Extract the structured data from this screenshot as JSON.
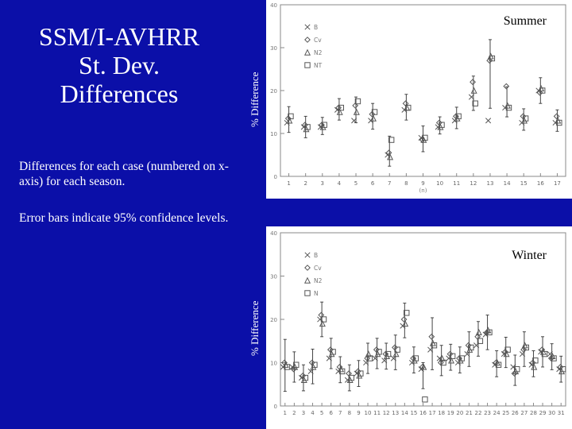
{
  "slide": {
    "title_lines": [
      "SSM/I-AVHRR",
      "St. Dev.",
      "Differences"
    ],
    "description": "Differences for each case (numbered on x-axis) for each season.",
    "error_note": "Error bars indicate 95% confidence levels."
  },
  "chart_data": [
    {
      "type": "scatter",
      "title": "Summer",
      "xlabel": "(n)",
      "ylabel": "% Difference",
      "ylim": [
        0,
        40
      ],
      "yticks": [
        0,
        10,
        20,
        30,
        40
      ],
      "x": [
        1,
        2,
        3,
        4,
        5,
        6,
        7,
        8,
        9,
        10,
        11,
        12,
        13,
        14,
        15,
        16,
        17
      ],
      "legend_placement": "top-left",
      "series": [
        {
          "name": "B",
          "marker": "x",
          "values": [
            12.5,
            11.5,
            11.5,
            15.5,
            13,
            13,
            5,
            15.5,
            9,
            11.5,
            13,
            18.5,
            13,
            16,
            12.5,
            20,
            12.5
          ]
        },
        {
          "name": "Cv",
          "marker": "diamond",
          "values": [
            13.5,
            12,
            12,
            16,
            16.5,
            14.5,
            5.5,
            17,
            8.5,
            12.5,
            14,
            22,
            27,
            21,
            14,
            19.5,
            14
          ]
        },
        {
          "name": "N2",
          "marker": "triangle",
          "values": [
            13,
            11,
            11.5,
            15,
            15,
            13.5,
            4.5,
            16,
            8.5,
            11.5,
            13.5,
            20,
            28,
            16.5,
            13,
            20.5,
            13
          ]
        },
        {
          "name": "NT",
          "marker": "square",
          "values": [
            14,
            11.5,
            12,
            16,
            17.5,
            15,
            8.5,
            16,
            9,
            12,
            14,
            17,
            27.5,
            16,
            13.5,
            20,
            12.5
          ]
        }
      ],
      "err": [
        3,
        2.5,
        2,
        2.5,
        3,
        3,
        3.5,
        3,
        3,
        2,
        2.5,
        4,
        8,
        3.5,
        2.5,
        3,
        2.5
      ]
    },
    {
      "type": "scatter",
      "title": "Winter",
      "xlabel": "",
      "ylabel": "% Difference",
      "ylim": [
        0,
        40
      ],
      "yticks": [
        0,
        10,
        20,
        30,
        40
      ],
      "x": [
        1,
        2,
        3,
        4,
        5,
        6,
        7,
        8,
        9,
        10,
        11,
        12,
        13,
        14,
        15,
        16,
        17,
        18,
        19,
        20,
        21,
        22,
        23,
        24,
        25,
        26,
        27,
        28,
        29,
        30,
        31
      ],
      "legend_placement": "top-left",
      "series": [
        {
          "name": "B",
          "marker": "x",
          "values": [
            9,
            9,
            6.5,
            8,
            20,
            11,
            8,
            6,
            7.5,
            10,
            11,
            10.5,
            11,
            18.5,
            10,
            8.5,
            13,
            11,
            11,
            10,
            12,
            14,
            16.5,
            9.5,
            12,
            9,
            12,
            9.5,
            12.5,
            12,
            8.5
          ]
        },
        {
          "name": "Cv",
          "marker": "diamond",
          "values": [
            10,
            8.5,
            7,
            10,
            21,
            13,
            9,
            7.5,
            8,
            11,
            13,
            12,
            13.5,
            20,
            11,
            9,
            16,
            10,
            12,
            11,
            14,
            16,
            17,
            10,
            12.5,
            7.5,
            13,
            10,
            13,
            11,
            9
          ]
        },
        {
          "name": "N2",
          "marker": "triangle",
          "values": [
            9.5,
            9,
            6,
            9,
            19,
            12,
            8.5,
            6,
            7,
            12,
            12,
            11.5,
            12,
            19,
            10.5,
            9,
            14.5,
            11,
            10.5,
            10.5,
            13,
            17,
            17.5,
            10,
            12,
            8,
            14,
            9,
            12.5,
            11.5,
            8
          ]
        },
        {
          "name": "N",
          "marker": "square",
          "values": [
            9,
            9.5,
            6.5,
            9.5,
            20,
            12.5,
            8,
            6.5,
            7.5,
            11,
            12.5,
            12,
            13,
            21.5,
            11,
            1.5,
            14,
            10,
            11.5,
            11,
            13.5,
            15,
            17,
            9.5,
            13,
            8.5,
            13.5,
            10.5,
            12,
            11,
            8.5
          ]
        }
      ],
      "err": [
        6,
        3.5,
        3,
        4,
        4,
        3.5,
        3,
        3,
        3,
        3.5,
        3.5,
        3,
        4,
        4,
        3,
        3,
        6,
        3.5,
        3,
        3,
        4,
        4,
        4,
        3,
        3.5,
        3.5,
        4,
        3,
        3.5,
        3,
        3
      ]
    }
  ]
}
